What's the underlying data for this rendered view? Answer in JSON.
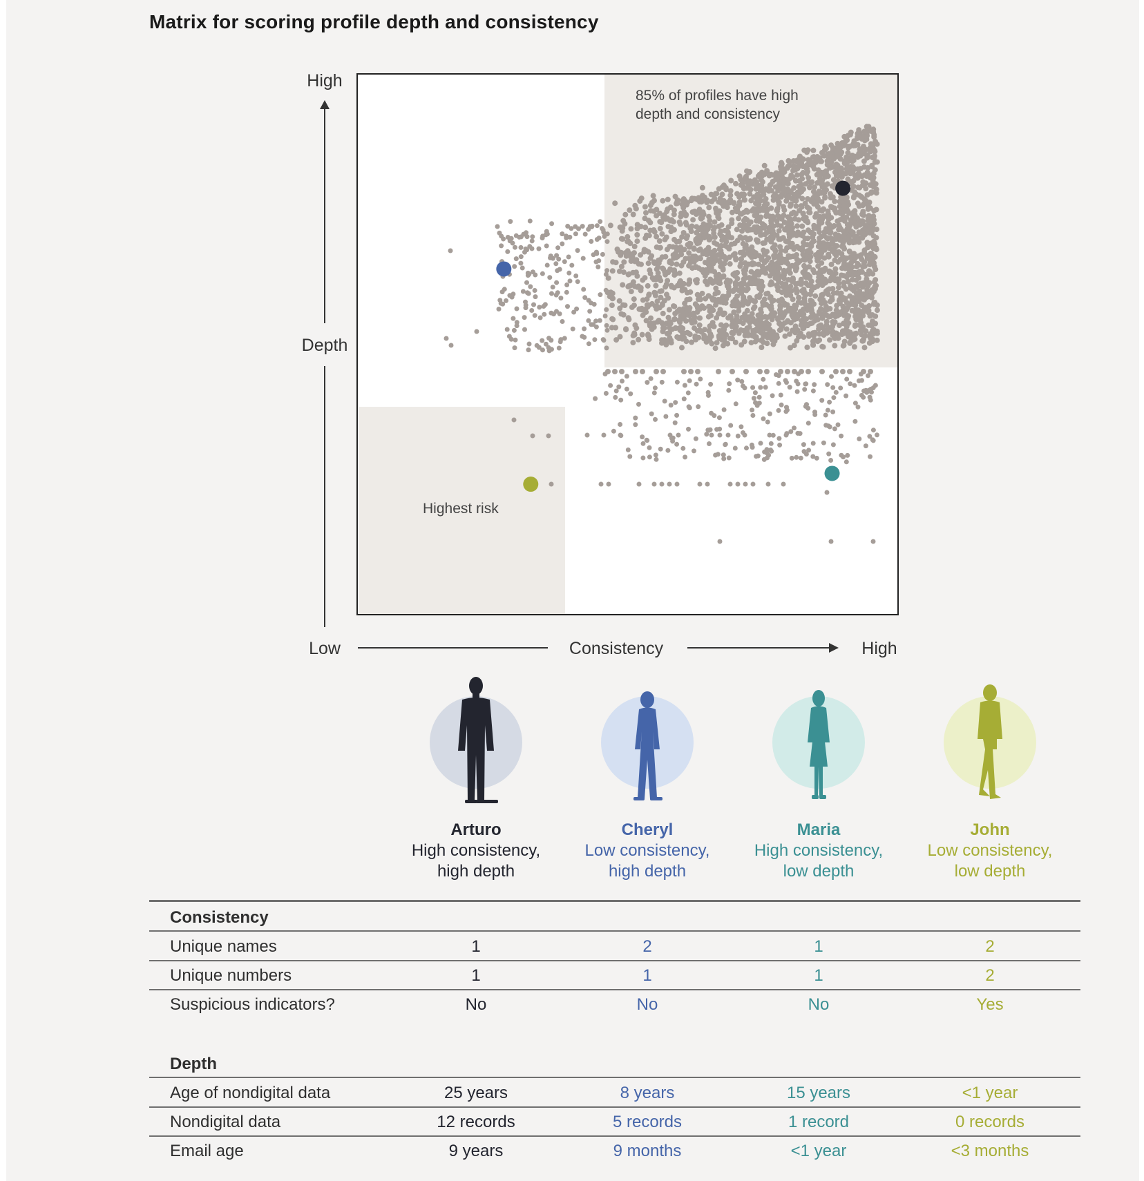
{
  "title": "Matrix for scoring profile depth and consistency",
  "colors": {
    "arturo": "#23252f",
    "cheryl": "#4565a9",
    "maria": "#3b9093",
    "john": "#a6ad35",
    "cloud": "#a59d98",
    "arturo_bg": "#d5dae4",
    "cheryl_bg": "#d5e0f2",
    "maria_bg": "#d2ebe8",
    "john_bg": "#ecf0c9"
  },
  "chart_data": {
    "type": "scatter",
    "title": "Matrix for scoring profile depth and consistency",
    "xlabel": "Consistency",
    "ylabel": "Depth",
    "x_ticks": [
      "Low",
      "High"
    ],
    "y_ticks": [
      "Low",
      "High"
    ],
    "xlim": [
      0,
      100
    ],
    "ylim": [
      0,
      100
    ],
    "annotations": {
      "top_right": "85% of profiles have high depth and consistency",
      "bottom_left": "Highest risk"
    },
    "highlighted_points": [
      {
        "name": "Arturo",
        "x": 90,
        "y": 79,
        "color": "#23252f"
      },
      {
        "name": "Cheryl",
        "x": 27,
        "y": 64,
        "color": "#4565a9"
      },
      {
        "name": "Maria",
        "x": 88,
        "y": 26,
        "color": "#3b9093"
      },
      {
        "name": "John",
        "x": 32,
        "y": 24,
        "color": "#a6ad35"
      }
    ],
    "cloud": {
      "note": "several thousand grey profile points, densest in the high-consistency / high-depth quadrant",
      "color": "#a59d98"
    }
  },
  "profiles": [
    {
      "key": "arturo",
      "name": "Arturo",
      "desc1": "High consistency,",
      "desc2": "high depth"
    },
    {
      "key": "cheryl",
      "name": "Cheryl",
      "desc1": "Low consistency,",
      "desc2": "high depth"
    },
    {
      "key": "maria",
      "name": "Maria",
      "desc1": "High consistency,",
      "desc2": "low depth"
    },
    {
      "key": "john",
      "name": "John",
      "desc1": "Low consistency,",
      "desc2": "low depth"
    }
  ],
  "table": {
    "consistency_header": "Consistency",
    "depth_header": "Depth",
    "rows": [
      {
        "label": "Unique names",
        "values": [
          "1",
          "2",
          "1",
          "2"
        ]
      },
      {
        "label": "Unique numbers",
        "values": [
          "1",
          "1",
          "1",
          "2"
        ]
      },
      {
        "label": "Suspicious indicators?",
        "values": [
          "No",
          "No",
          "No",
          "Yes"
        ]
      },
      {
        "label": "Age of nondigital data",
        "values": [
          "25 years",
          "8 years",
          "15 years",
          "<1 year"
        ]
      },
      {
        "label": "Nondigital data",
        "values": [
          "12 records",
          "5 records",
          "1 record",
          "0 records"
        ]
      },
      {
        "label": "Email age",
        "values": [
          "9 years",
          "9 months",
          "<1 year",
          "<3 months"
        ]
      }
    ]
  }
}
